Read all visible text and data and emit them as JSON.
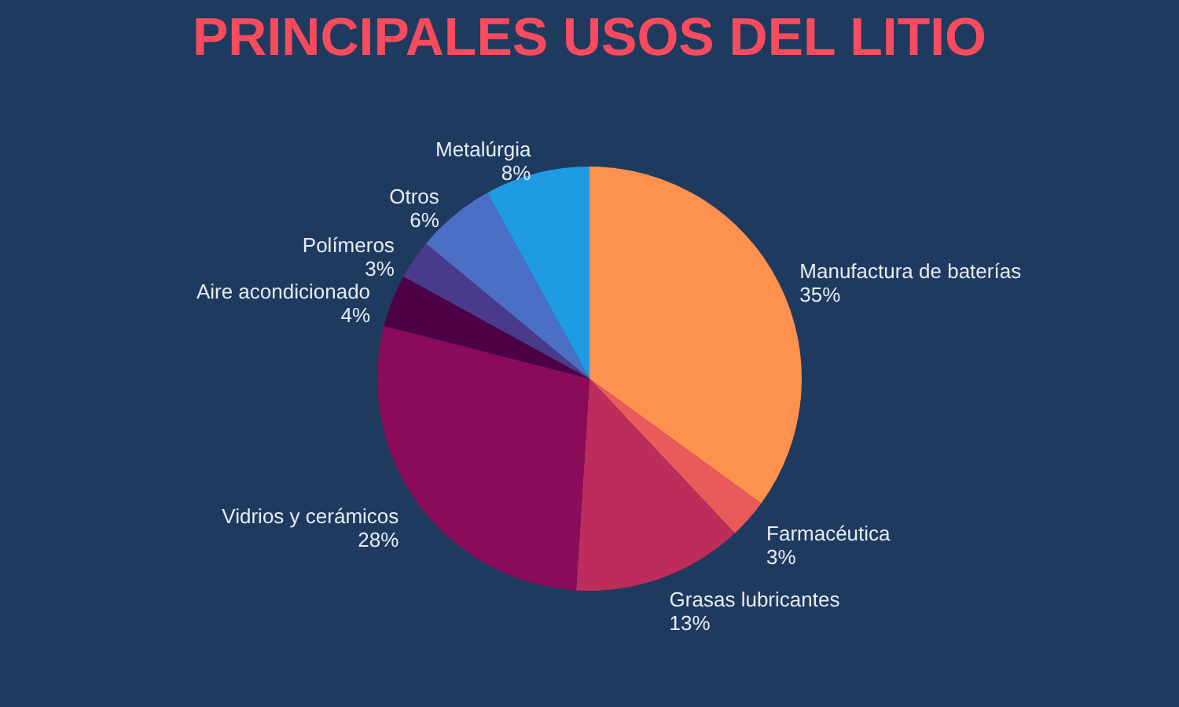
{
  "chart_data": {
    "type": "pie",
    "title": "PRINCIPALES USOS DEL LITIO",
    "categories": [
      "Manufactura de baterías",
      "Farmacéutica",
      "Grasas lubricantes",
      "Vidrios y cerámicos",
      "Aire acondicionado",
      "Polímeros",
      "Otros",
      "Metalúrgia"
    ],
    "values": [
      35,
      3,
      13,
      28,
      4,
      3,
      6,
      8
    ],
    "value_labels": [
      "35%",
      "3%",
      "13%",
      "28%",
      "4%",
      "3%",
      "6%",
      "8%"
    ],
    "colors": [
      "#fe914d",
      "#ea5a5a",
      "#bd2c5a",
      "#8a0b5a",
      "#4d0248",
      "#4a3a8c",
      "#4a6fc4",
      "#1e9be3"
    ],
    "legend": false
  }
}
